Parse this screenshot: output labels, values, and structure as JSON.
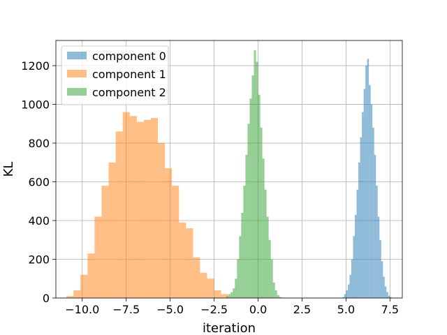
{
  "chart_data": {
    "type": "histogram",
    "title": "",
    "xlabel": "iteration",
    "ylabel": "KL",
    "xlim": [
      -11.5,
      8.2
    ],
    "ylim": [
      0,
      1330
    ],
    "x_ticks": [
      -10.0,
      -7.5,
      -5.0,
      -2.5,
      0.0,
      2.5,
      5.0,
      7.5
    ],
    "x_tick_labels": [
      "−10.0",
      "−7.5",
      "−5.0",
      "−2.5",
      "0.0",
      "2.5",
      "5.0",
      "7.5"
    ],
    "y_ticks": [
      0,
      200,
      400,
      600,
      800,
      1000,
      1200
    ],
    "y_tick_labels": [
      "0",
      "200",
      "400",
      "600",
      "800",
      "1000",
      "1200"
    ],
    "grid": true,
    "legend_position": "top-left",
    "series": [
      {
        "name": "component 0",
        "color": "#1f77b4",
        "alpha": 0.5,
        "bin_start": 4.8,
        "bin_width": 0.1,
        "counts": [
          5,
          20,
          40,
          70,
          120,
          200,
          320,
          430,
          560,
          700,
          830,
          960,
          1080,
          1200,
          1235,
          1100,
          1000,
          880,
          740,
          580,
          420,
          300,
          190,
          110,
          60,
          30,
          12,
          5
        ]
      },
      {
        "name": "component 1",
        "color": "#ff7f0e",
        "alpha": 0.5,
        "bin_start": -10.9,
        "bin_width": 0.4,
        "counts": [
          10,
          40,
          120,
          230,
          420,
          580,
          700,
          860,
          960,
          940,
          910,
          920,
          930,
          800,
          670,
          580,
          390,
          360,
          210,
          130,
          100,
          40,
          20
        ]
      },
      {
        "name": "component 2",
        "color": "#2ca02c",
        "alpha": 0.5,
        "bin_start": -1.8,
        "bin_width": 0.12,
        "counts": [
          10,
          20,
          30,
          50,
          100,
          200,
          320,
          440,
          580,
          740,
          900,
          1030,
          1150,
          1280,
          1220,
          1050,
          880,
          720,
          560,
          420,
          300,
          200,
          80,
          40,
          15,
          5,
          2
        ]
      }
    ]
  }
}
